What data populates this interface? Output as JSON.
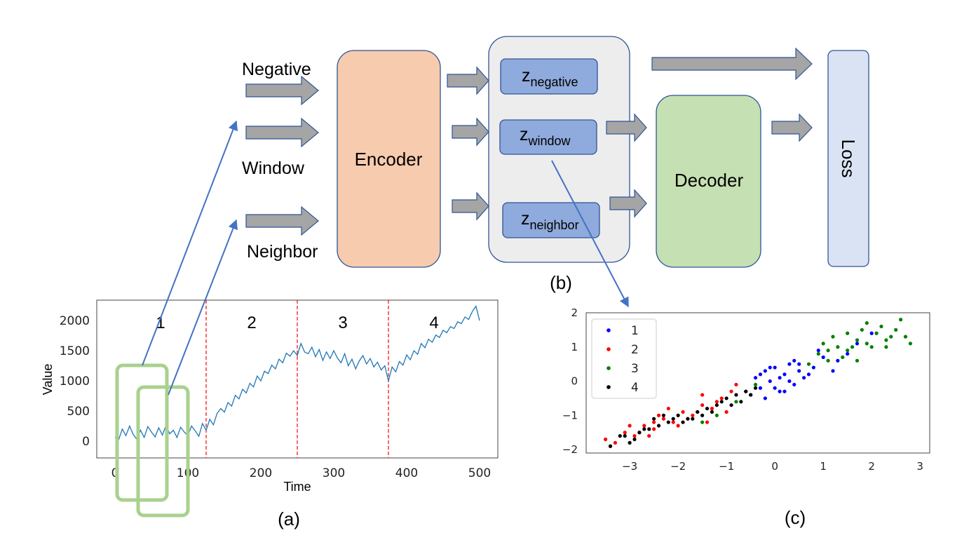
{
  "diagram": {
    "inputs": {
      "negative": "Negative",
      "window": "Window",
      "neighbor": "Neighbor"
    },
    "encoder": "Encoder",
    "decoder": "Decoder",
    "loss": "Loss",
    "latent": {
      "negative": {
        "base": "z",
        "sub": "negative"
      },
      "window": {
        "base": "z",
        "sub": "window"
      },
      "neighbor": {
        "base": "z",
        "sub": "neighbor"
      }
    },
    "panel_labels": {
      "a": "(a)",
      "b": "(b)",
      "c": "(c)"
    },
    "colors": {
      "encoder_fill": "#f7cbad",
      "decoder_fill": "#c5e0b3",
      "loss_fill": "#dae3f3",
      "latent_fill": "#8faadc",
      "group_fill": "#ededed",
      "arrow_fill": "#a5a5a5",
      "border": "#2f5597",
      "window_box": "#a9d18e",
      "pointer_line": "#4472c4"
    }
  },
  "chart_data": [
    {
      "type": "line",
      "title": "",
      "xlabel": "Time",
      "ylabel": "Value",
      "xlim": [
        -25,
        525
      ],
      "ylim": [
        -280,
        2340
      ],
      "xticks": [
        0,
        100,
        200,
        300,
        400,
        500
      ],
      "yticks": [
        0,
        500,
        1000,
        1500,
        2000
      ],
      "segment_boundaries": [
        125,
        250,
        375
      ],
      "segment_labels": [
        "1",
        "2",
        "3",
        "4"
      ],
      "series": [
        {
          "color": "#1f77b4",
          "x": [
            0,
            5,
            10,
            15,
            20,
            25,
            30,
            35,
            40,
            45,
            50,
            55,
            60,
            65,
            70,
            75,
            80,
            85,
            90,
            95,
            100,
            105,
            110,
            115,
            120,
            125,
            130,
            135,
            140,
            145,
            150,
            155,
            160,
            165,
            170,
            175,
            180,
            185,
            190,
            195,
            200,
            205,
            210,
            215,
            220,
            225,
            230,
            235,
            240,
            245,
            250,
            255,
            260,
            265,
            270,
            275,
            280,
            285,
            290,
            295,
            300,
            305,
            310,
            315,
            320,
            325,
            330,
            335,
            340,
            345,
            350,
            355,
            360,
            365,
            370,
            375,
            380,
            385,
            390,
            395,
            400,
            405,
            410,
            415,
            420,
            425,
            430,
            435,
            440,
            445,
            450,
            455,
            460,
            465,
            470,
            475,
            480,
            485,
            490,
            495,
            500
          ],
          "y": [
            60,
            20,
            200,
            90,
            250,
            110,
            30,
            180,
            60,
            240,
            150,
            70,
            220,
            100,
            260,
            120,
            180,
            60,
            230,
            150,
            90,
            250,
            170,
            80,
            290,
            180,
            360,
            270,
            460,
            540,
            480,
            640,
            580,
            760,
            700,
            860,
            800,
            960,
            900,
            1080,
            1000,
            1160,
            1120,
            1260,
            1200,
            1360,
            1300,
            1460,
            1410,
            1500,
            1420,
            1620,
            1480,
            1450,
            1560,
            1400,
            1520,
            1340,
            1480,
            1370,
            1500,
            1380,
            1300,
            1450,
            1250,
            1360,
            1200,
            1330,
            1420,
            1280,
            1370,
            1230,
            1310,
            1180,
            1250,
            1000,
            1230,
            1150,
            1320,
            1260,
            1430,
            1350,
            1500,
            1440,
            1620,
            1550,
            1690,
            1640,
            1760,
            1720,
            1840,
            1800,
            1900,
            1870,
            1980,
            1950,
            2060,
            2020,
            2150,
            2240,
            2000
          ]
        }
      ]
    },
    {
      "type": "scatter",
      "title": "",
      "xlabel": "",
      "ylabel": "",
      "xlim": [
        -3.9,
        3.2
      ],
      "ylim": [
        -2.1,
        2.0
      ],
      "xticks": [
        -3,
        -2,
        -1,
        0,
        1,
        2,
        3
      ],
      "yticks": [
        -2,
        -1,
        0,
        1,
        2
      ],
      "legend": "top-left",
      "series": [
        {
          "name": "1",
          "color": "#0000ff",
          "x": [
            -0.5,
            -0.4,
            -0.3,
            -0.2,
            -0.1,
            0,
            0.1,
            0.2,
            0.3,
            0.4,
            0.5,
            0.6,
            -0.3,
            0,
            0.3,
            0.5,
            0.8,
            1,
            1.2,
            1.5,
            -0.2,
            0.1,
            0.4,
            0.7,
            0.9,
            1.3,
            1.7,
            2,
            -0.1,
            0.2
          ],
          "y": [
            -0.4,
            0.1,
            -0.2,
            0.3,
            0,
            0.4,
            -0.3,
            0.2,
            0.5,
            -0.1,
            0.3,
            0.1,
            0.2,
            -0.2,
            0,
            0.5,
            0.4,
            0.7,
            0.3,
            0.8,
            -0.5,
            0.1,
            0.6,
            0.2,
            0.9,
            0.6,
            1.1,
            1.4,
            0.4,
            -0.3
          ]
        },
        {
          "name": "2",
          "color": "#ff0000",
          "x": [
            -3.5,
            -3.3,
            -3.1,
            -2.9,
            -2.7,
            -2.5,
            -2.3,
            -2.1,
            -1.9,
            -1.7,
            -1.5,
            -1.3,
            -1.1,
            -0.9,
            -3.4,
            -2.8,
            -2.4,
            -2,
            -1.6,
            -1.2,
            -0.8,
            -2.6,
            -2.2,
            -1.8,
            -1.4,
            -1,
            -3,
            -0.6,
            -2.5,
            -1.5
          ],
          "y": [
            -1.7,
            -1.8,
            -1.5,
            -1.6,
            -1.3,
            -1.4,
            -1.1,
            -1.2,
            -0.9,
            -1,
            -0.7,
            -0.8,
            -0.5,
            -0.3,
            -1.9,
            -1.5,
            -1,
            -1.3,
            -0.9,
            -0.6,
            -0.1,
            -1.6,
            -0.8,
            -1.1,
            -1.2,
            -0.9,
            -1.3,
            -0.3,
            -1.2,
            -0.4
          ]
        },
        {
          "name": "3",
          "color": "#008000",
          "x": [
            0.7,
            0.9,
            1.1,
            1.3,
            1.5,
            1.7,
            1.9,
            2.1,
            2.3,
            2.5,
            2.7,
            1,
            1.4,
            1.8,
            2.2,
            2.6,
            1.2,
            1.6,
            2,
            2.4,
            2.8,
            1.5,
            1.9,
            -1.2,
            -0.8,
            -0.4,
            -1.5,
            1.1,
            1.7,
            2.3
          ],
          "y": [
            0.5,
            0.8,
            0.6,
            1.0,
            0.9,
            1.2,
            1.1,
            1.4,
            1.2,
            1.5,
            1.3,
            1.1,
            0.7,
            1.5,
            1.6,
            1.8,
            1.3,
            1.0,
            1.0,
            1.3,
            1.1,
            1.4,
            1.7,
            -1.0,
            -0.6,
            -0.1,
            -1.2,
            0.9,
            0.6,
            1.0
          ]
        },
        {
          "name": "4",
          "color": "#000000",
          "x": [
            -3.4,
            -3.2,
            -3,
            -2.8,
            -2.6,
            -2.4,
            -2.2,
            -2,
            -1.8,
            -1.6,
            -1.4,
            -1.2,
            -1,
            -0.8,
            -0.6,
            -0.5,
            -3.1,
            -2.7,
            -2.3,
            -1.9,
            -1.5,
            -1.1,
            -0.7,
            -2.9,
            -2.5,
            -2.1,
            -1.7,
            -1.3,
            -0.9,
            -0.4
          ],
          "y": [
            -1.9,
            -1.6,
            -1.8,
            -1.5,
            -1.4,
            -1.3,
            -1.2,
            -1.0,
            -1.1,
            -0.9,
            -0.8,
            -0.7,
            -0.5,
            -0.4,
            -0.3,
            -0.4,
            -1.6,
            -1.4,
            -1.0,
            -1.2,
            -1.0,
            -0.6,
            -0.6,
            -1.7,
            -1.1,
            -1.1,
            -1.1,
            -0.9,
            -0.7,
            -0.2
          ]
        }
      ]
    }
  ]
}
